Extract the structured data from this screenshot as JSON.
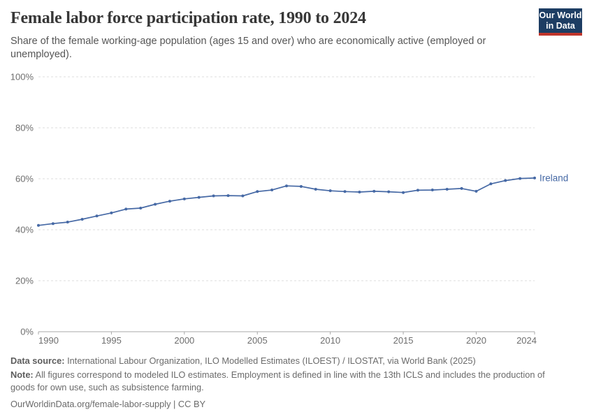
{
  "header": {
    "title": "Female labor force participation rate, 1990 to 2024",
    "subtitle": "Share of the female working-age population (ages 15 and over) who are economically active (employed or unemployed)."
  },
  "logo": {
    "line1": "Our World",
    "line2": "in Data",
    "bg_color": "#1d3d63",
    "accent_color": "#c0352b"
  },
  "chart_data": {
    "type": "line",
    "title": "Female labor force participation rate, 1990 to 2024",
    "xlabel": "",
    "ylabel": "",
    "xlim": [
      1990,
      2024
    ],
    "ylim": [
      0,
      100
    ],
    "x_ticks": [
      1990,
      1995,
      2000,
      2005,
      2010,
      2015,
      2020,
      2024
    ],
    "y_ticks": [
      0,
      20,
      40,
      60,
      80,
      100
    ],
    "y_tick_suffix": "%",
    "grid": "dashed-horizontal",
    "legend_position": "end-of-line-label",
    "x": [
      1990,
      1991,
      1992,
      1993,
      1994,
      1995,
      1996,
      1997,
      1998,
      1999,
      2000,
      2001,
      2002,
      2003,
      2004,
      2005,
      2006,
      2007,
      2008,
      2009,
      2010,
      2011,
      2012,
      2013,
      2014,
      2015,
      2016,
      2017,
      2018,
      2019,
      2020,
      2021,
      2022,
      2023,
      2024
    ],
    "series": [
      {
        "name": "Ireland",
        "color": "#4669a5",
        "values": [
          41.7,
          42.4,
          43.0,
          44.1,
          45.4,
          46.6,
          48.1,
          48.5,
          50.0,
          51.2,
          52.1,
          52.7,
          53.3,
          53.4,
          53.3,
          55.0,
          55.6,
          57.2,
          57.0,
          55.9,
          55.3,
          55.0,
          54.8,
          55.1,
          54.9,
          54.6,
          55.5,
          55.6,
          55.9,
          56.2,
          55.1,
          58.0,
          59.3,
          60.1,
          60.3
        ]
      }
    ],
    "style": {
      "grid_color": "#dddddd",
      "axis_color": "#a8a8a8",
      "tick_label_color": "#6e6e6e"
    }
  },
  "footer": {
    "datasource_label": "Data source:",
    "datasource_text": " International Labour Organization, ILO Modelled Estimates (ILOEST) / ILOSTAT, via World Bank (2025)",
    "note_label": "Note:",
    "note_text": " All figures correspond to modeled ILO estimates. Employment is defined in line with the 13th ICLS and includes the production of goods for own use, such as subsistence farming.",
    "url_text": "OurWorldinData.org/female-labor-supply | CC BY"
  }
}
